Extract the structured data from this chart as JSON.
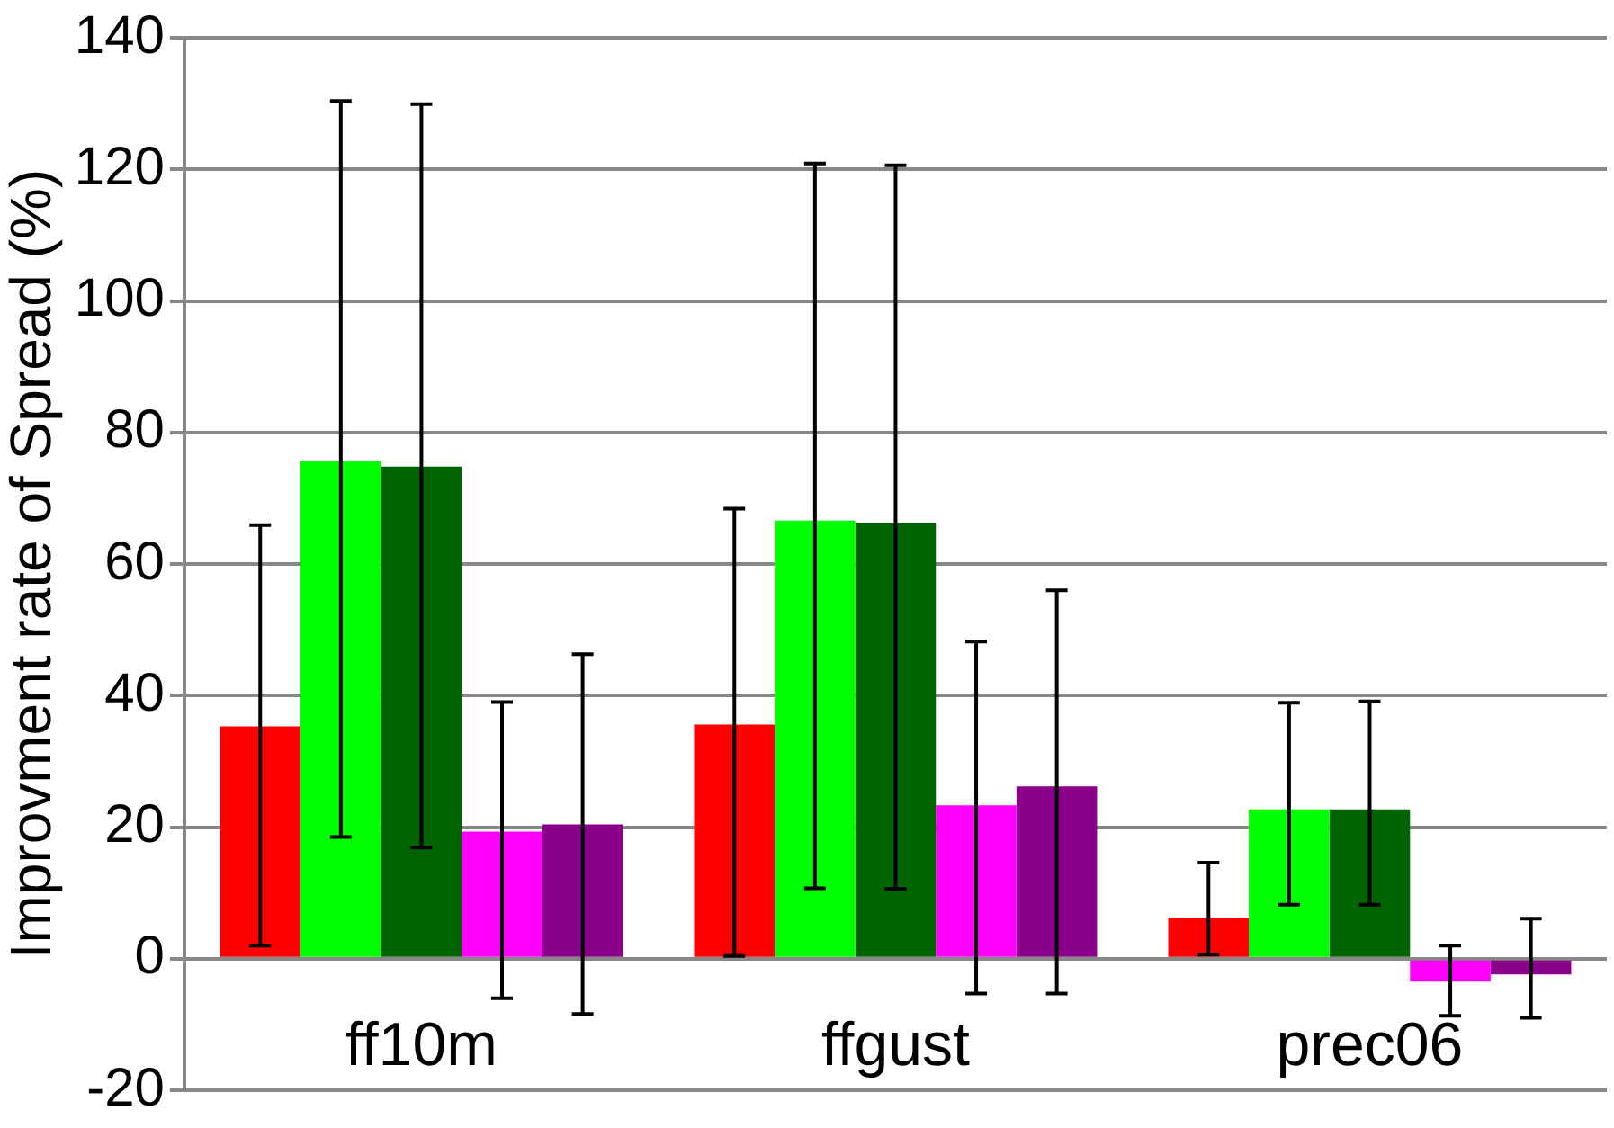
{
  "chart_data": {
    "type": "bar",
    "ylabel": "Improvment rate of Spread (%)",
    "categories": [
      "ff10m",
      "ffgust",
      "prec06"
    ],
    "series": [
      {
        "color": "#ff0000",
        "values": [
          35.3,
          35.6,
          6.2
        ],
        "errors": [
          [
            2.0,
            65.9
          ],
          [
            0.4,
            68.4
          ],
          [
            0.6,
            14.6
          ]
        ]
      },
      {
        "color": "#00ff00",
        "values": [
          75.7,
          66.6,
          22.7
        ],
        "errors": [
          [
            18.5,
            130.4
          ],
          [
            10.7,
            120.9
          ],
          [
            8.2,
            38.9
          ]
        ]
      },
      {
        "color": "#006400",
        "values": [
          74.8,
          66.3,
          22.7
        ],
        "errors": [
          [
            16.9,
            129.9
          ],
          [
            10.6,
            120.6
          ],
          [
            8.2,
            39.1
          ]
        ]
      },
      {
        "color": "#ff00ff",
        "values": [
          19.3,
          23.3,
          -3.5
        ],
        "errors": [
          [
            -6.0,
            39.0
          ],
          [
            -5.3,
            48.2
          ],
          [
            -8.7,
            2.0
          ]
        ]
      },
      {
        "color": "#8b008b",
        "values": [
          20.4,
          26.2,
          -2.4
        ],
        "errors": [
          [
            -8.4,
            46.3
          ],
          [
            -5.3,
            56.0
          ],
          [
            -9.0,
            6.1
          ]
        ]
      }
    ],
    "ylim": [
      -20,
      140
    ],
    "yticks": [
      -20,
      0,
      20,
      40,
      60,
      80,
      100,
      120,
      140
    ],
    "grid": "y",
    "legend": false
  }
}
